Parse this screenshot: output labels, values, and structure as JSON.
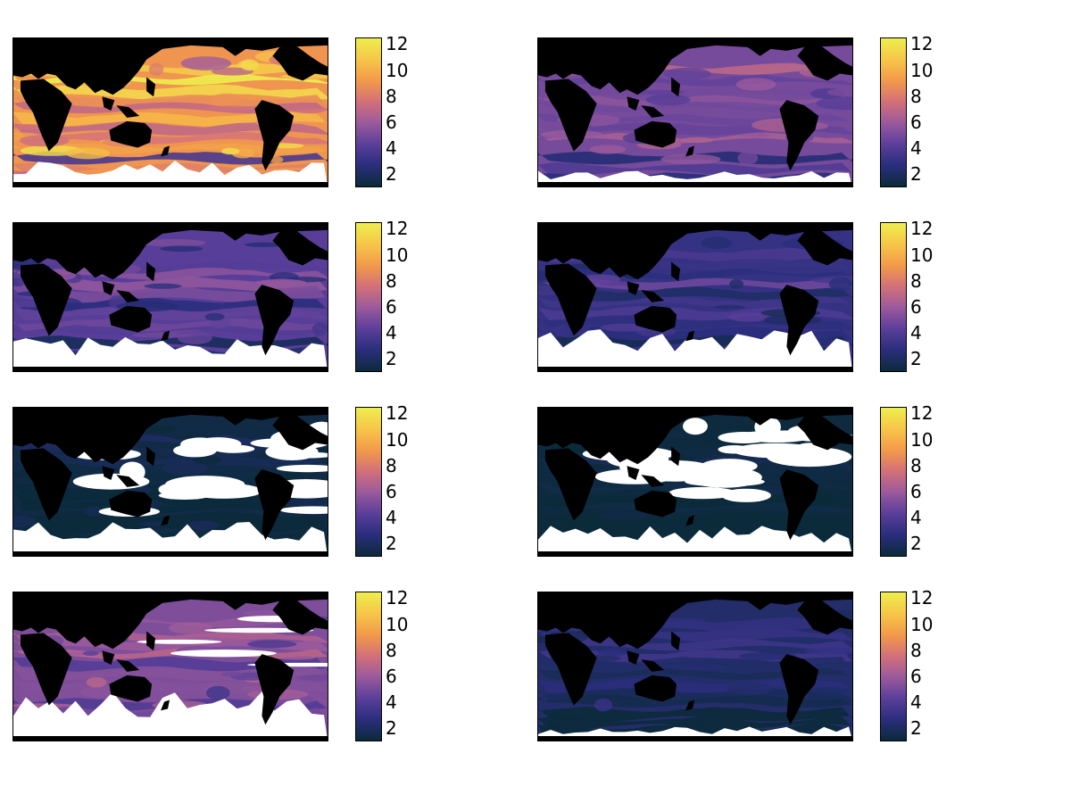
{
  "chart_data": {
    "type": "heatmap",
    "layout": "4x2 grid of global ocean maps, each with its own colorbar",
    "colormap": [
      "#0b2a3a",
      "#2a2e7c",
      "#5b3f9a",
      "#9a5a9c",
      "#d2707a",
      "#f39a4a",
      "#f6c648",
      "#eeee4e"
    ],
    "colorbar": {
      "range": [
        1,
        12.5
      ],
      "ticks": [
        "2",
        "4",
        "6",
        "8",
        "10",
        "12"
      ]
    },
    "land_color": "#000000",
    "missing_color": "#ffffff",
    "panels": [
      {
        "id": "r1c1",
        "level": 9.0,
        "variance": 2.5,
        "south_missing": 0.35
      },
      {
        "id": "r1c2",
        "level": 5.0,
        "variance": 1.4,
        "south_missing": 0.1
      },
      {
        "id": "r2c1",
        "level": 4.2,
        "variance": 1.6,
        "south_missing": 0.55
      },
      {
        "id": "r2c2",
        "level": 3.0,
        "variance": 1.2,
        "south_missing": 0.75
      },
      {
        "id": "r3c1",
        "level": 1.3,
        "variance": 0.6,
        "south_missing": 0.55,
        "missing_tropics": true
      },
      {
        "id": "r3c2",
        "level": 1.1,
        "variance": 0.3,
        "south_missing": 0.45,
        "missing_tropics": true
      },
      {
        "id": "r4c1",
        "level": 5.2,
        "variance": 1.6,
        "south_missing": 0.95,
        "missing_band": true
      },
      {
        "id": "r4c2",
        "level": 2.2,
        "variance": 0.8,
        "south_missing": 0.05
      }
    ]
  }
}
